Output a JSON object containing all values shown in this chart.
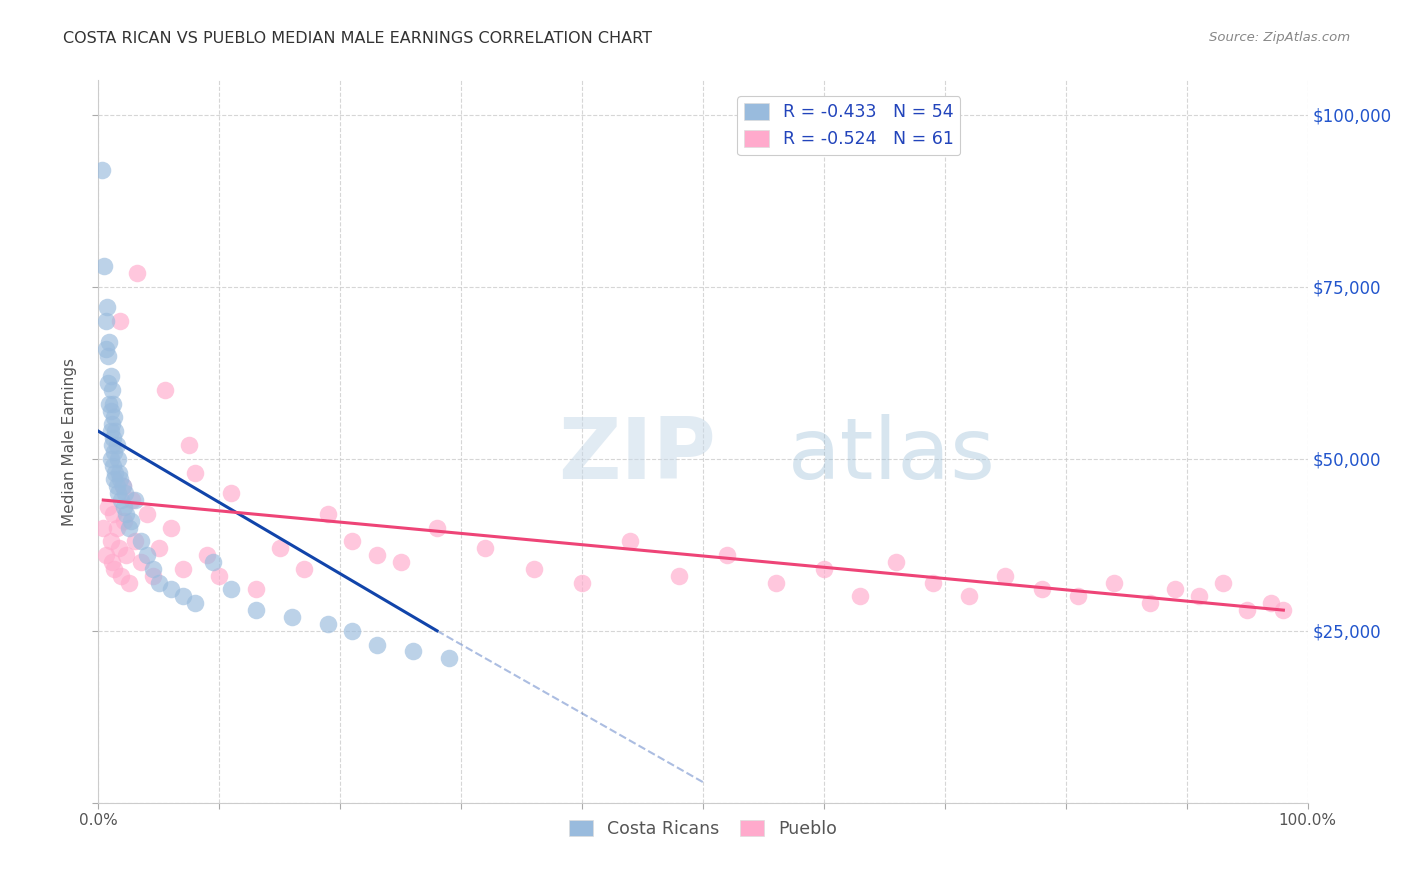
{
  "title": "COSTA RICAN VS PUEBLO MEDIAN MALE EARNINGS CORRELATION CHART",
  "source": "Source: ZipAtlas.com",
  "ylabel": "Median Male Earnings",
  "xlim": [
    0.0,
    100.0
  ],
  "ylim": [
    0,
    105000
  ],
  "yticks": [
    0,
    25000,
    50000,
    75000,
    100000
  ],
  "ytick_labels": [
    "",
    "$25,000",
    "$50,000",
    "$75,000",
    "$100,000"
  ],
  "xticks": [
    0.0,
    10.0,
    20.0,
    30.0,
    40.0,
    50.0,
    60.0,
    70.0,
    80.0,
    90.0,
    100.0
  ],
  "xtick_labels": [
    "0.0%",
    "",
    "",
    "",
    "",
    "",
    "",
    "",
    "",
    "",
    "100.0%"
  ],
  "background_color": "#ffffff",
  "grid_color": "#cccccc",
  "legend_R1": "R = -0.433",
  "legend_N1": "N = 54",
  "legend_R2": "R = -0.524",
  "legend_N2": "N = 61",
  "blue_color": "#99bbdd",
  "pink_color": "#ffaacc",
  "blue_line_color": "#1144aa",
  "pink_line_color": "#ee4477",
  "watermark_zip": "ZIP",
  "watermark_atlas": "atlas",
  "costa_rican_x": [
    0.3,
    0.5,
    0.6,
    0.6,
    0.7,
    0.8,
    0.8,
    0.9,
    0.9,
    1.0,
    1.0,
    1.0,
    1.0,
    1.1,
    1.1,
    1.1,
    1.2,
    1.2,
    1.2,
    1.3,
    1.3,
    1.3,
    1.4,
    1.4,
    1.5,
    1.5,
    1.6,
    1.6,
    1.7,
    1.8,
    1.9,
    2.0,
    2.1,
    2.2,
    2.3,
    2.5,
    2.7,
    3.0,
    3.5,
    4.0,
    4.5,
    5.0,
    6.0,
    7.0,
    8.0,
    9.5,
    11.0,
    13.0,
    16.0,
    19.0,
    21.0,
    23.0,
    26.0,
    29.0
  ],
  "costa_rican_y": [
    92000,
    78000,
    70000,
    66000,
    72000,
    65000,
    61000,
    67000,
    58000,
    62000,
    57000,
    54000,
    50000,
    60000,
    55000,
    52000,
    58000,
    53000,
    49000,
    56000,
    51000,
    47000,
    54000,
    48000,
    52000,
    46000,
    50000,
    45000,
    48000,
    47000,
    44000,
    46000,
    43000,
    45000,
    42000,
    40000,
    41000,
    44000,
    38000,
    36000,
    34000,
    32000,
    31000,
    30000,
    29000,
    35000,
    31000,
    28000,
    27000,
    26000,
    25000,
    23000,
    22000,
    21000
  ],
  "pueblo_x": [
    0.4,
    0.6,
    0.8,
    1.0,
    1.1,
    1.2,
    1.3,
    1.5,
    1.7,
    1.9,
    2.1,
    2.3,
    2.5,
    2.8,
    3.0,
    3.5,
    4.0,
    4.5,
    5.0,
    6.0,
    7.0,
    8.0,
    9.0,
    10.0,
    11.0,
    13.0,
    15.0,
    17.0,
    19.0,
    21.0,
    23.0,
    25.0,
    28.0,
    32.0,
    36.0,
    40.0,
    44.0,
    48.0,
    52.0,
    56.0,
    60.0,
    63.0,
    66.0,
    69.0,
    72.0,
    75.0,
    78.0,
    81.0,
    84.0,
    87.0,
    89.0,
    91.0,
    93.0,
    95.0,
    97.0,
    98.0,
    3.2,
    5.5,
    7.5,
    2.0,
    1.8
  ],
  "pueblo_y": [
    40000,
    36000,
    43000,
    38000,
    35000,
    42000,
    34000,
    40000,
    37000,
    33000,
    41000,
    36000,
    32000,
    44000,
    38000,
    35000,
    42000,
    33000,
    37000,
    40000,
    34000,
    48000,
    36000,
    33000,
    45000,
    31000,
    37000,
    34000,
    42000,
    38000,
    36000,
    35000,
    40000,
    37000,
    34000,
    32000,
    38000,
    33000,
    36000,
    32000,
    34000,
    30000,
    35000,
    32000,
    30000,
    33000,
    31000,
    30000,
    32000,
    29000,
    31000,
    30000,
    32000,
    28000,
    29000,
    28000,
    77000,
    60000,
    52000,
    46000,
    70000
  ],
  "blue_line_x0": 0.0,
  "blue_line_y0": 54000,
  "blue_line_x1": 28.0,
  "blue_line_y1": 25000,
  "blue_dash_x0": 28.0,
  "blue_dash_y0": 25000,
  "blue_dash_x1": 50.0,
  "blue_dash_y1": 3000,
  "pink_line_x0": 0.4,
  "pink_line_y0": 44000,
  "pink_line_x1": 98.0,
  "pink_line_y1": 28000
}
